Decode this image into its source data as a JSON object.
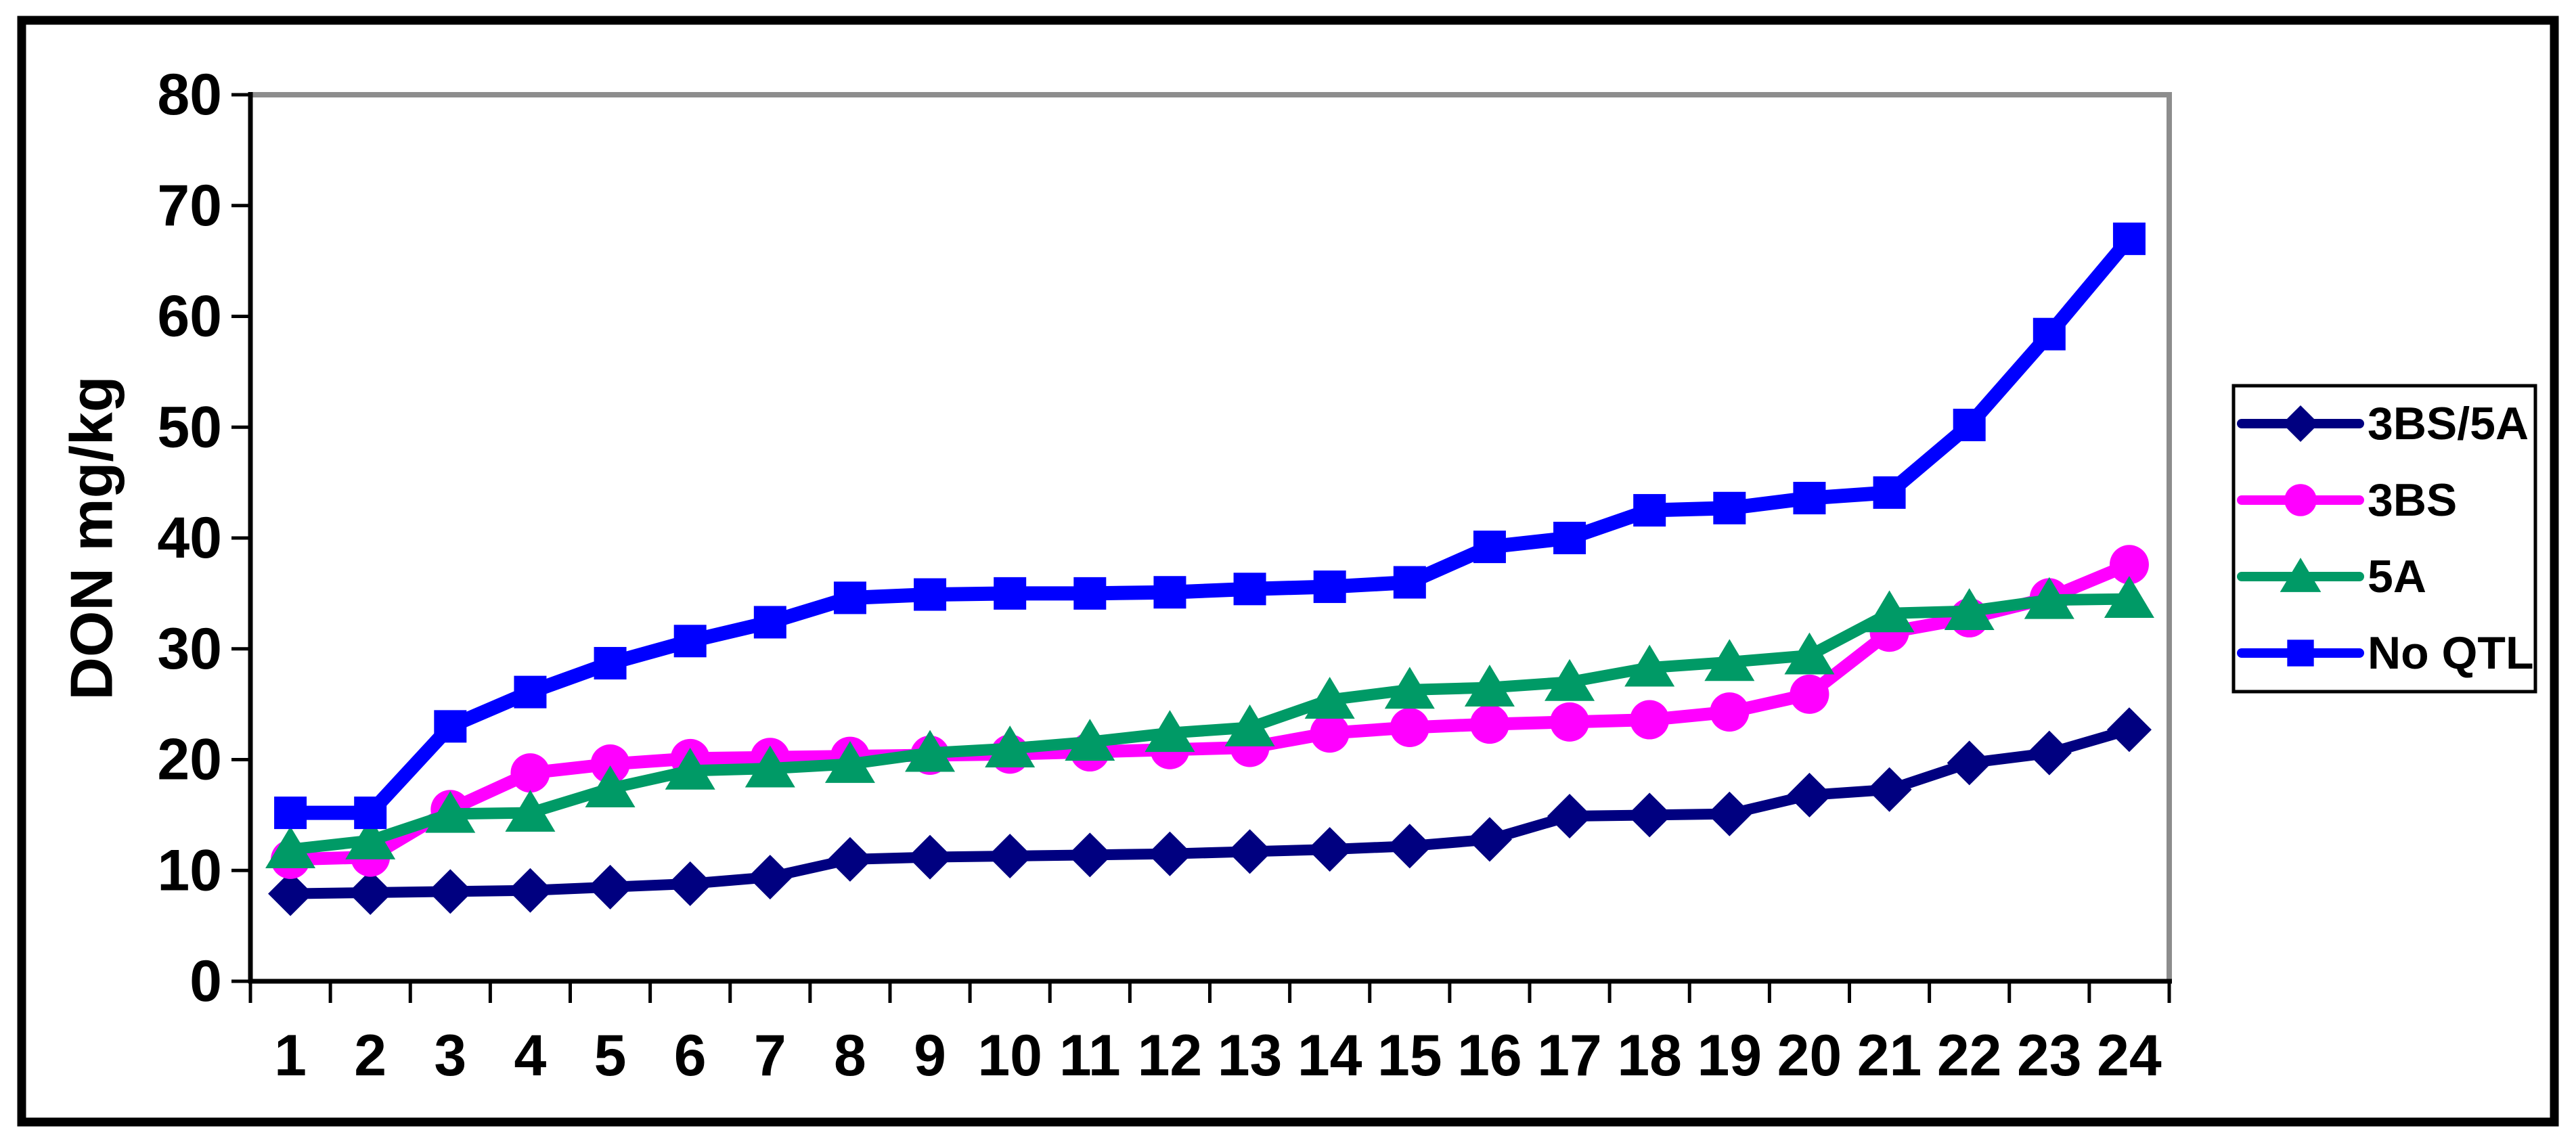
{
  "figure": {
    "background": "#FFFFFF",
    "border_color": "#000000",
    "plot_border_gray": "#8D8D8D"
  },
  "y_axis": {
    "title": "DON mg/kg",
    "tick_labels": [
      "0",
      "10",
      "20",
      "30",
      "40",
      "50",
      "60",
      "70",
      "80"
    ],
    "min": 0,
    "max": 80
  },
  "x_axis": {
    "tick_labels": [
      "1",
      "2",
      "3",
      "4",
      "5",
      "6",
      "7",
      "8",
      "9",
      "10",
      "11",
      "12",
      "13",
      "14",
      "15",
      "16",
      "17",
      "18",
      "19",
      "20",
      "21",
      "22",
      "23",
      "24"
    ]
  },
  "legend": {
    "items": [
      "3BS/5A",
      "3BS",
      "5A",
      "No QTL"
    ],
    "position": "right"
  },
  "chart_data": {
    "type": "line",
    "title": "",
    "xlabel": "",
    "ylabel": "DON mg/kg",
    "ylim": [
      0,
      80
    ],
    "grid": false,
    "legend_position": "right",
    "x": [
      1,
      2,
      3,
      4,
      5,
      6,
      7,
      8,
      9,
      10,
      11,
      12,
      13,
      14,
      15,
      16,
      17,
      18,
      19,
      20,
      21,
      22,
      23,
      24
    ],
    "series": [
      {
        "name": "3BS/5A",
        "color": "#000080",
        "marker": "diamond",
        "values": [
          7.9,
          8.0,
          8.1,
          8.2,
          8.5,
          8.8,
          9.4,
          11.0,
          11.2,
          11.3,
          11.4,
          11.5,
          11.7,
          11.9,
          12.2,
          12.8,
          14.9,
          15.0,
          15.1,
          16.8,
          17.3,
          19.7,
          20.6,
          22.7
        ]
      },
      {
        "name": "3BS",
        "color": "#FF00FF",
        "marker": "circle",
        "values": [
          11.0,
          11.2,
          15.5,
          18.8,
          19.6,
          20.1,
          20.2,
          20.3,
          20.4,
          20.5,
          20.7,
          20.9,
          21.1,
          22.4,
          22.9,
          23.2,
          23.4,
          23.6,
          24.3,
          25.9,
          31.5,
          32.8,
          34.6,
          37.6
        ]
      },
      {
        "name": "5A",
        "color": "#009A66",
        "marker": "triangle",
        "values": [
          11.9,
          12.7,
          15.1,
          15.2,
          17.4,
          19.0,
          19.2,
          19.6,
          20.6,
          21.0,
          21.6,
          22.4,
          22.9,
          25.4,
          26.3,
          26.5,
          27.0,
          28.3,
          28.8,
          29.4,
          33.2,
          33.4,
          34.4,
          34.5
        ]
      },
      {
        "name": "No QTL",
        "color": "#0000FF",
        "marker": "square",
        "values": [
          15.2,
          15.2,
          23.0,
          26.1,
          28.7,
          30.7,
          32.4,
          34.6,
          34.9,
          35.0,
          35.0,
          35.1,
          35.4,
          35.6,
          36.0,
          39.2,
          40.0,
          42.5,
          42.7,
          43.6,
          44.1,
          50.2,
          58.4,
          67.0
        ]
      }
    ]
  }
}
